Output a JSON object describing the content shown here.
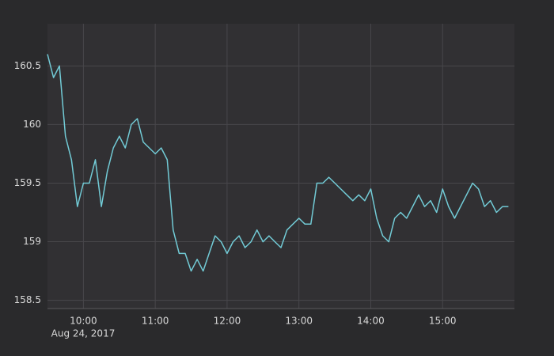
{
  "chart_data": {
    "type": "line",
    "x_date_label": "Aug 24, 2017",
    "x": [
      "2017-08-24 09:30",
      "2017-08-24 09:35",
      "2017-08-24 09:40",
      "2017-08-24 09:45",
      "2017-08-24 09:50",
      "2017-08-24 09:55",
      "2017-08-24 10:00",
      "2017-08-24 10:05",
      "2017-08-24 10:10",
      "2017-08-24 10:15",
      "2017-08-24 10:20",
      "2017-08-24 10:25",
      "2017-08-24 10:30",
      "2017-08-24 10:35",
      "2017-08-24 10:40",
      "2017-08-24 10:45",
      "2017-08-24 10:50",
      "2017-08-24 10:55",
      "2017-08-24 11:00",
      "2017-08-24 11:05",
      "2017-08-24 11:10",
      "2017-08-24 11:15",
      "2017-08-24 11:20",
      "2017-08-24 11:25",
      "2017-08-24 11:30",
      "2017-08-24 11:35",
      "2017-08-24 11:40",
      "2017-08-24 11:45",
      "2017-08-24 11:50",
      "2017-08-24 11:55",
      "2017-08-24 12:00",
      "2017-08-24 12:05",
      "2017-08-24 12:10",
      "2017-08-24 12:15",
      "2017-08-24 12:20",
      "2017-08-24 12:25",
      "2017-08-24 12:30",
      "2017-08-24 12:35",
      "2017-08-24 12:40",
      "2017-08-24 12:45",
      "2017-08-24 12:50",
      "2017-08-24 12:55",
      "2017-08-24 13:00",
      "2017-08-24 13:05",
      "2017-08-24 13:10",
      "2017-08-24 13:15",
      "2017-08-24 13:20",
      "2017-08-24 13:25",
      "2017-08-24 13:30",
      "2017-08-24 13:35",
      "2017-08-24 13:40",
      "2017-08-24 13:45",
      "2017-08-24 13:50",
      "2017-08-24 13:55",
      "2017-08-24 14:00",
      "2017-08-24 14:05",
      "2017-08-24 14:10",
      "2017-08-24 14:15",
      "2017-08-24 14:20",
      "2017-08-24 14:25",
      "2017-08-24 14:30",
      "2017-08-24 14:35",
      "2017-08-24 14:40",
      "2017-08-24 14:45",
      "2017-08-24 14:50",
      "2017-08-24 14:55",
      "2017-08-24 15:00",
      "2017-08-24 15:05",
      "2017-08-24 15:10",
      "2017-08-24 15:15",
      "2017-08-24 15:20",
      "2017-08-24 15:25",
      "2017-08-24 15:30",
      "2017-08-24 15:35",
      "2017-08-24 15:40",
      "2017-08-24 15:45",
      "2017-08-24 15:50",
      "2017-08-24 15:55"
    ],
    "values": [
      160.6,
      160.4,
      160.5,
      159.9,
      159.7,
      159.3,
      159.5,
      159.5,
      159.7,
      159.3,
      159.6,
      159.8,
      159.9,
      159.8,
      160.0,
      160.05,
      159.85,
      159.8,
      159.75,
      159.8,
      159.7,
      159.1,
      158.9,
      158.9,
      158.75,
      158.85,
      158.75,
      158.9,
      159.05,
      159.0,
      158.9,
      159.0,
      159.05,
      158.95,
      159.0,
      159.1,
      159.0,
      159.05,
      159.0,
      158.95,
      159.1,
      159.15,
      159.2,
      159.15,
      159.15,
      159.5,
      159.5,
      159.55,
      159.5,
      159.45,
      159.4,
      159.35,
      159.4,
      159.35,
      159.45,
      159.2,
      159.05,
      159.0,
      159.2,
      159.25,
      159.2,
      159.3,
      159.4,
      159.3,
      159.35,
      159.25,
      159.45,
      159.3,
      159.2,
      159.3,
      159.4,
      159.5,
      159.45,
      159.3,
      159.35,
      159.25,
      159.3,
      159.3
    ],
    "color": "#72cbd6",
    "xlim": [
      "2017-08-24 09:30",
      "2017-08-24 16:00"
    ],
    "xticks": [
      {
        "value": "2017-08-24 10:00",
        "label": "10:00"
      },
      {
        "value": "2017-08-24 11:00",
        "label": "11:00"
      },
      {
        "value": "2017-08-24 12:00",
        "label": "12:00"
      },
      {
        "value": "2017-08-24 13:00",
        "label": "13:00"
      },
      {
        "value": "2017-08-24 14:00",
        "label": "14:00"
      },
      {
        "value": "2017-08-24 15:00",
        "label": "15:00"
      }
    ],
    "ylim": [
      158.43,
      160.86
    ],
    "yticks": [
      158.5,
      159,
      159.5,
      160,
      160.5
    ],
    "grid": true
  }
}
